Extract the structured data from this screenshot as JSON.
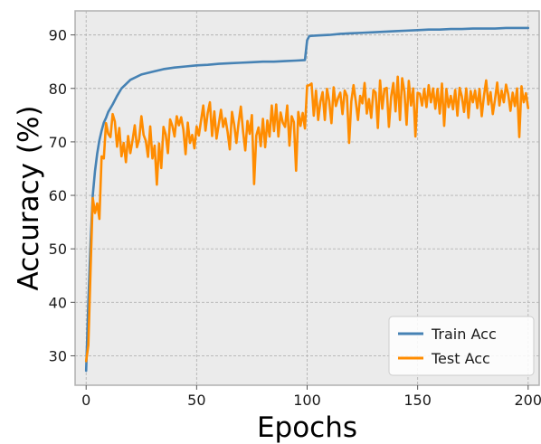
{
  "chart_data": {
    "type": "line",
    "xlabel": "Epochs",
    "ylabel": "Accuracy (%)",
    "xlim": [
      -5,
      205
    ],
    "ylim": [
      24.5,
      94.5
    ],
    "xticks": [
      0,
      50,
      100,
      150,
      200
    ],
    "yticks": [
      30,
      40,
      50,
      60,
      70,
      80,
      90
    ],
    "grid": true,
    "legend_position": "lower-right",
    "series": [
      {
        "name": "Train Acc",
        "color": "#4682B4",
        "points": [
          [
            0,
            27.2
          ],
          [
            1,
            40.0
          ],
          [
            2,
            51.0
          ],
          [
            3,
            60.0
          ],
          [
            4,
            64.5
          ],
          [
            5,
            67.8
          ],
          [
            6,
            70.3
          ],
          [
            7,
            72.1
          ],
          [
            8,
            73.6
          ],
          [
            9,
            74.5
          ],
          [
            10,
            75.6
          ],
          [
            12,
            77.0
          ],
          [
            14,
            78.6
          ],
          [
            16,
            80.0
          ],
          [
            18,
            80.8
          ],
          [
            20,
            81.6
          ],
          [
            25,
            82.6
          ],
          [
            30,
            83.1
          ],
          [
            35,
            83.6
          ],
          [
            40,
            83.9
          ],
          [
            45,
            84.1
          ],
          [
            50,
            84.3
          ],
          [
            55,
            84.4
          ],
          [
            60,
            84.6
          ],
          [
            65,
            84.7
          ],
          [
            70,
            84.8
          ],
          [
            75,
            84.9
          ],
          [
            80,
            85.0
          ],
          [
            85,
            85.0
          ],
          [
            90,
            85.1
          ],
          [
            95,
            85.2
          ],
          [
            99,
            85.3
          ],
          [
            100,
            89.0
          ],
          [
            101,
            89.8
          ],
          [
            105,
            89.9
          ],
          [
            110,
            90.0
          ],
          [
            115,
            90.2
          ],
          [
            120,
            90.3
          ],
          [
            125,
            90.4
          ],
          [
            130,
            90.5
          ],
          [
            135,
            90.6
          ],
          [
            140,
            90.7
          ],
          [
            145,
            90.8
          ],
          [
            150,
            90.9
          ],
          [
            155,
            91.0
          ],
          [
            160,
            91.0
          ],
          [
            165,
            91.1
          ],
          [
            170,
            91.1
          ],
          [
            175,
            91.2
          ],
          [
            180,
            91.2
          ],
          [
            185,
            91.2
          ],
          [
            190,
            91.3
          ],
          [
            195,
            91.3
          ],
          [
            200,
            91.3
          ]
        ]
      },
      {
        "name": "Test Acc",
        "color": "#FF8C00",
        "points": [
          [
            0,
            29.0
          ],
          [
            1,
            32.0
          ],
          [
            2,
            46.0
          ],
          [
            3,
            59.5
          ],
          [
            4,
            56.7
          ],
          [
            5,
            58.5
          ],
          [
            6,
            55.6
          ],
          [
            7,
            67.3
          ],
          [
            8,
            66.9
          ],
          [
            9,
            73.5
          ],
          [
            10,
            71.5
          ],
          [
            11,
            70.9
          ],
          [
            12,
            75.2
          ],
          [
            13,
            73.8
          ],
          [
            14,
            69.1
          ],
          [
            15,
            72.6
          ],
          [
            16,
            67.3
          ],
          [
            17,
            69.8
          ],
          [
            18,
            66.2
          ],
          [
            19,
            71.1
          ],
          [
            20,
            67.9
          ],
          [
            21,
            70.3
          ],
          [
            22,
            73.1
          ],
          [
            23,
            69.0
          ],
          [
            24,
            70.5
          ],
          [
            25,
            74.8
          ],
          [
            26,
            71.3
          ],
          [
            27,
            70.2
          ],
          [
            28,
            67.2
          ],
          [
            29,
            72.9
          ],
          [
            30,
            66.9
          ],
          [
            31,
            69.3
          ],
          [
            32,
            62.0
          ],
          [
            33,
            69.7
          ],
          [
            34,
            65.1
          ],
          [
            35,
            72.8
          ],
          [
            36,
            71.4
          ],
          [
            37,
            67.9
          ],
          [
            38,
            74.2
          ],
          [
            39,
            73.0
          ],
          [
            40,
            71.0
          ],
          [
            41,
            74.8
          ],
          [
            42,
            73.1
          ],
          [
            43,
            74.6
          ],
          [
            44,
            72.3
          ],
          [
            45,
            67.7
          ],
          [
            46,
            73.6
          ],
          [
            47,
            69.8
          ],
          [
            48,
            71.3
          ],
          [
            49,
            68.8
          ],
          [
            50,
            72.9
          ],
          [
            51,
            71.2
          ],
          [
            52,
            74.0
          ],
          [
            53,
            76.8
          ],
          [
            54,
            72.1
          ],
          [
            55,
            75.4
          ],
          [
            56,
            77.4
          ],
          [
            57,
            71.1
          ],
          [
            58,
            75.7
          ],
          [
            59,
            70.6
          ],
          [
            60,
            73.3
          ],
          [
            61,
            76.0
          ],
          [
            62,
            72.8
          ],
          [
            63,
            74.4
          ],
          [
            64,
            71.9
          ],
          [
            65,
            68.6
          ],
          [
            66,
            75.6
          ],
          [
            67,
            73.2
          ],
          [
            68,
            69.8
          ],
          [
            69,
            73.6
          ],
          [
            70,
            76.6
          ],
          [
            71,
            72.0
          ],
          [
            72,
            68.4
          ],
          [
            73,
            73.9
          ],
          [
            74,
            71.5
          ],
          [
            75,
            75.0
          ],
          [
            76,
            62.1
          ],
          [
            77,
            71.2
          ],
          [
            78,
            72.7
          ],
          [
            79,
            69.2
          ],
          [
            80,
            74.3
          ],
          [
            81,
            69.0
          ],
          [
            82,
            74.0
          ],
          [
            83,
            71.0
          ],
          [
            84,
            76.8
          ],
          [
            85,
            72.0
          ],
          [
            86,
            77.0
          ],
          [
            87,
            71.0
          ],
          [
            88,
            75.5
          ],
          [
            89,
            73.6
          ],
          [
            90,
            72.8
          ],
          [
            91,
            76.8
          ],
          [
            92,
            69.3
          ],
          [
            93,
            74.8
          ],
          [
            94,
            73.7
          ],
          [
            95,
            64.6
          ],
          [
            96,
            75.6
          ],
          [
            97,
            73.0
          ],
          [
            98,
            75.4
          ],
          [
            99,
            72.5
          ],
          [
            100,
            80.5
          ],
          [
            101,
            80.6
          ],
          [
            102,
            80.9
          ],
          [
            103,
            74.9
          ],
          [
            104,
            79.6
          ],
          [
            105,
            74.1
          ],
          [
            106,
            77.5
          ],
          [
            107,
            79.3
          ],
          [
            108,
            74.1
          ],
          [
            109,
            79.9
          ],
          [
            110,
            77.6
          ],
          [
            111,
            73.5
          ],
          [
            112,
            80.2
          ],
          [
            113,
            76.7
          ],
          [
            114,
            78.2
          ],
          [
            115,
            79.2
          ],
          [
            116,
            75.2
          ],
          [
            117,
            79.6
          ],
          [
            118,
            78.6
          ],
          [
            119,
            69.8
          ],
          [
            120,
            77.6
          ],
          [
            121,
            80.6
          ],
          [
            122,
            77.6
          ],
          [
            123,
            74.1
          ],
          [
            124,
            78.6
          ],
          [
            125,
            77.2
          ],
          [
            126,
            81.0
          ],
          [
            127,
            75.3
          ],
          [
            128,
            78.0
          ],
          [
            129,
            74.5
          ],
          [
            130,
            79.7
          ],
          [
            131,
            79.2
          ],
          [
            132,
            72.6
          ],
          [
            133,
            81.5
          ],
          [
            134,
            76.2
          ],
          [
            135,
            79.9
          ],
          [
            136,
            80.1
          ],
          [
            137,
            72.8
          ],
          [
            138,
            78.4
          ],
          [
            139,
            81.0
          ],
          [
            140,
            75.7
          ],
          [
            141,
            82.2
          ],
          [
            142,
            74.1
          ],
          [
            143,
            81.9
          ],
          [
            144,
            79.4
          ],
          [
            145,
            73.2
          ],
          [
            146,
            81.4
          ],
          [
            147,
            76.8
          ],
          [
            148,
            80.0
          ],
          [
            149,
            71.0
          ],
          [
            150,
            79.2
          ],
          [
            151,
            79.0
          ],
          [
            152,
            76.8
          ],
          [
            153,
            79.9
          ],
          [
            154,
            76.5
          ],
          [
            155,
            80.6
          ],
          [
            156,
            77.4
          ],
          [
            157,
            80.0
          ],
          [
            158,
            76.2
          ],
          [
            159,
            79.9
          ],
          [
            160,
            75.3
          ],
          [
            161,
            80.9
          ],
          [
            162,
            73.0
          ],
          [
            163,
            79.9
          ],
          [
            164,
            76.5
          ],
          [
            165,
            78.6
          ],
          [
            166,
            76.1
          ],
          [
            167,
            79.7
          ],
          [
            168,
            74.9
          ],
          [
            169,
            80.1
          ],
          [
            170,
            78.5
          ],
          [
            171,
            75.6
          ],
          [
            172,
            80.0
          ],
          [
            173,
            74.5
          ],
          [
            174,
            79.5
          ],
          [
            175,
            77.4
          ],
          [
            176,
            79.6
          ],
          [
            177,
            76.3
          ],
          [
            178,
            79.9
          ],
          [
            179,
            74.8
          ],
          [
            180,
            78.6
          ],
          [
            181,
            81.5
          ],
          [
            182,
            77.0
          ],
          [
            183,
            79.3
          ],
          [
            184,
            75.2
          ],
          [
            185,
            77.9
          ],
          [
            186,
            81.1
          ],
          [
            187,
            76.8
          ],
          [
            188,
            79.6
          ],
          [
            189,
            77.4
          ],
          [
            190,
            80.7
          ],
          [
            191,
            78.9
          ],
          [
            192,
            75.8
          ],
          [
            193,
            79.2
          ],
          [
            194,
            76.7
          ],
          [
            195,
            80.0
          ],
          [
            196,
            70.9
          ],
          [
            197,
            80.4
          ],
          [
            198,
            77.4
          ],
          [
            199,
            79.1
          ],
          [
            200,
            76.3
          ]
        ]
      }
    ]
  }
}
